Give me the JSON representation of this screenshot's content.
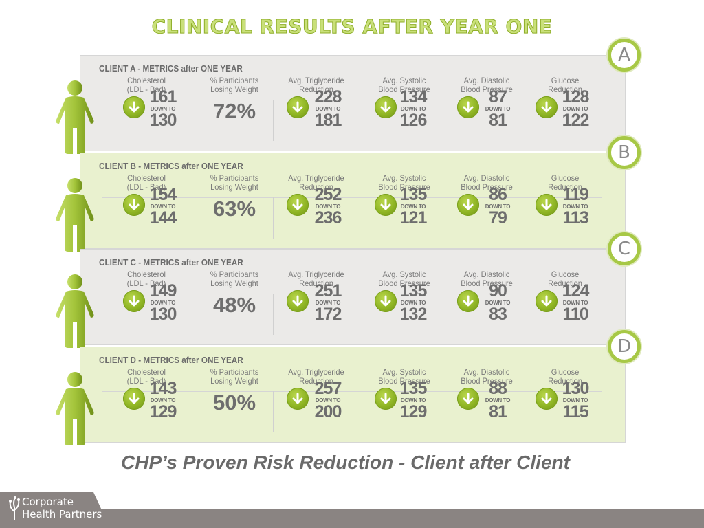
{
  "title": "CLINICAL RESULTS AFTER YEAR ONE",
  "tagline": "CHP’s Proven Risk Reduction - Client after Client",
  "logo": {
    "line1": "Corporate",
    "line2": "Health Partners"
  },
  "colors": {
    "green_accent": "#a7c846",
    "title_green": "#c9e07a",
    "text_grey": "#6e6e6e"
  },
  "down_to_label": "DOWN TO",
  "headers": {
    "cholesterol": "Cholesterol\n(LDL - Bad)",
    "weight": "% Participants\nLosing Weight",
    "triglyceride": "Avg. Triglyceride\nReduction",
    "systolic": "Avg. Systolic\nBlood Pressure",
    "diastolic": "Avg. Diastolic\nBlood Pressure",
    "glucose": "Glucose\nReduction"
  },
  "clients": [
    {
      "badge": "A",
      "title": "CLIENT A - METRICS after ONE YEAR",
      "cholesterol": {
        "from": "161",
        "to": "130"
      },
      "weight": "72%",
      "triglyceride": {
        "from": "228",
        "to": "181"
      },
      "systolic": {
        "from": "134",
        "to": "126"
      },
      "diastolic": {
        "from": "87",
        "to": "81"
      },
      "glucose": {
        "from": "128",
        "to": "122"
      }
    },
    {
      "badge": "B",
      "title": "CLIENT B - METRICS after ONE YEAR",
      "cholesterol": {
        "from": "154",
        "to": "144"
      },
      "weight": "63%",
      "triglyceride": {
        "from": "252",
        "to": "236"
      },
      "systolic": {
        "from": "135",
        "to": "121"
      },
      "diastolic": {
        "from": "86",
        "to": "79"
      },
      "glucose": {
        "from": "119",
        "to": "113"
      }
    },
    {
      "badge": "C",
      "title": "CLIENT C - METRICS after ONE YEAR",
      "cholesterol": {
        "from": "149",
        "to": "130"
      },
      "weight": "48%",
      "triglyceride": {
        "from": "251",
        "to": "172"
      },
      "systolic": {
        "from": "135",
        "to": "132"
      },
      "diastolic": {
        "from": "90",
        "to": "83"
      },
      "glucose": {
        "from": "124",
        "to": "110"
      }
    },
    {
      "badge": "D",
      "title": "CLIENT D - METRICS after ONE YEAR",
      "cholesterol": {
        "from": "143",
        "to": "129"
      },
      "weight": "50%",
      "triglyceride": {
        "from": "257",
        "to": "200"
      },
      "systolic": {
        "from": "135",
        "to": "129"
      },
      "diastolic": {
        "from": "88",
        "to": "81"
      },
      "glucose": {
        "from": "130",
        "to": "115"
      }
    }
  ]
}
